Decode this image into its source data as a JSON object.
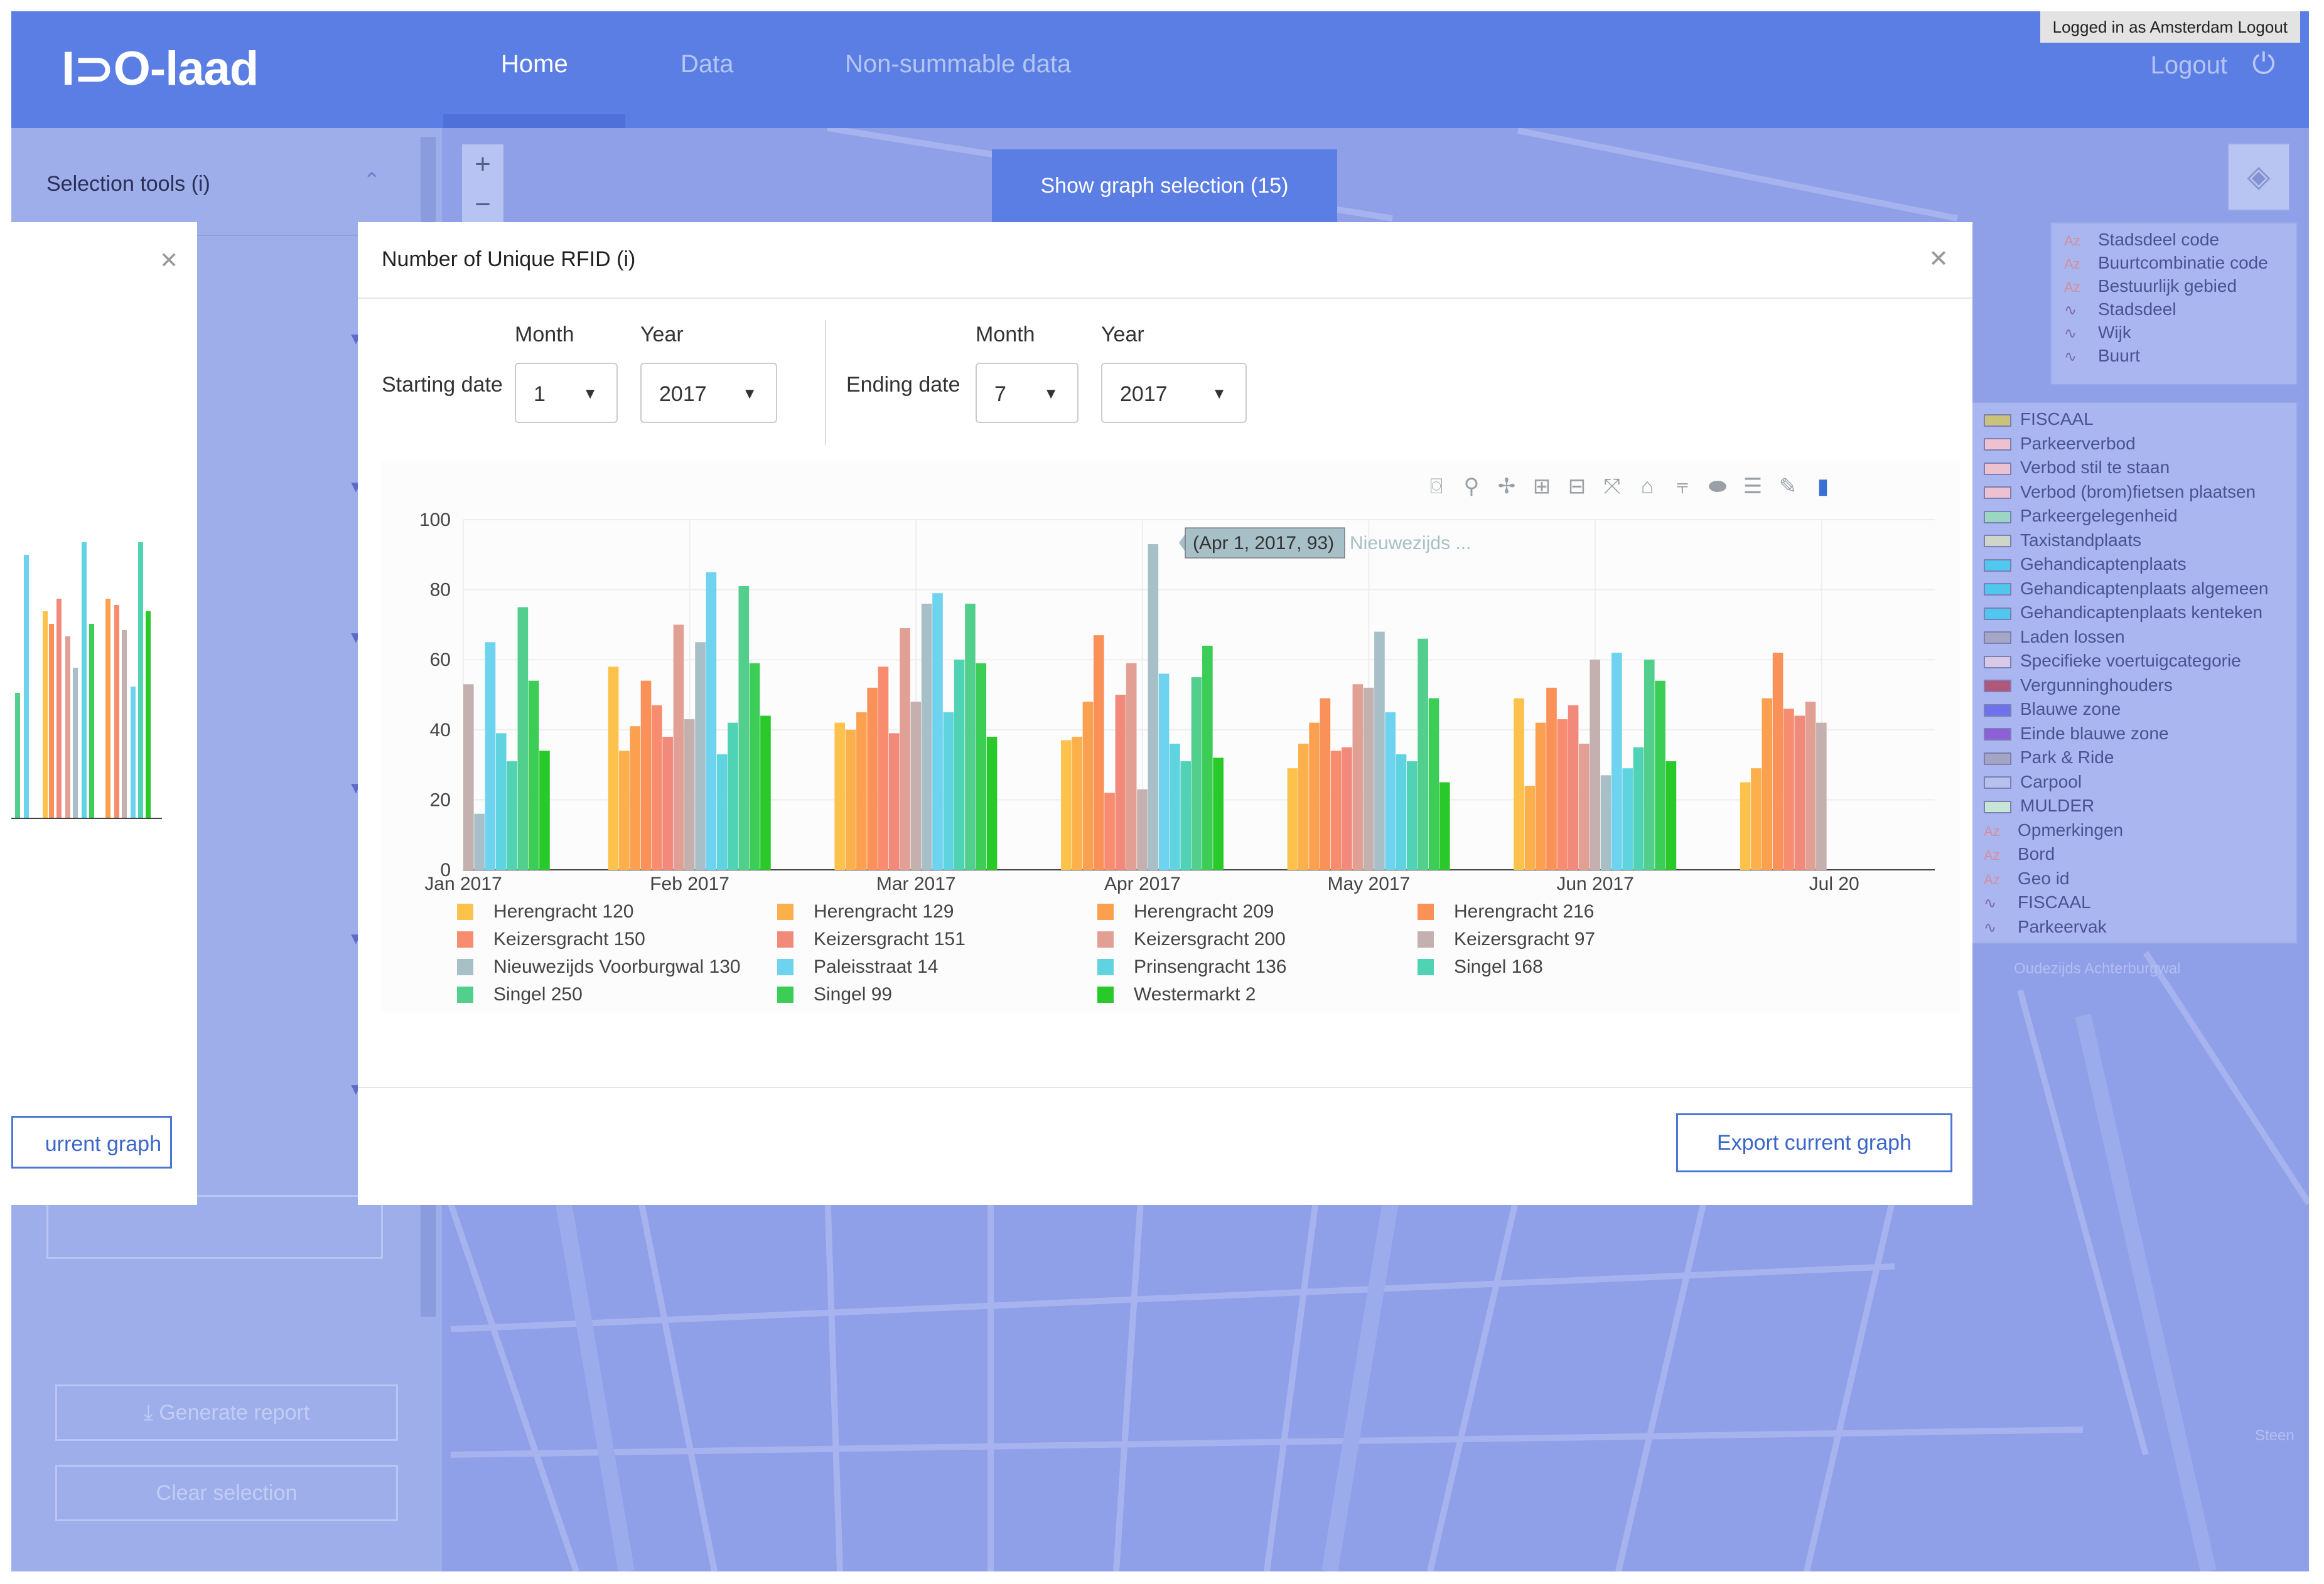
{
  "app": {
    "logo": "I⊃O-laad",
    "nav": [
      "Home",
      "Data",
      "Non-summable data"
    ],
    "logged_in": "Logged in as Amsterdam  Logout",
    "logout": "Logout",
    "power_icon": "power-icon"
  },
  "sidebar": {
    "title": "Selection tools (i)",
    "generate_report": "Generate report",
    "clear_selection": "Clear selection"
  },
  "map_labels": [
    "Oudezijds Achterburgwal",
    "Steen"
  ],
  "show_graph_selection": "Show graph selection (15)",
  "layers_legend": [
    {
      "kind": "az",
      "label": "Stadsdeel code"
    },
    {
      "kind": "az",
      "label": "Buurtcombinatie code"
    },
    {
      "kind": "az",
      "label": "Bestuurlijk gebied"
    },
    {
      "kind": "line",
      "label": "Stadsdeel"
    },
    {
      "kind": "line",
      "label": "Wijk"
    },
    {
      "kind": "line",
      "label": "Buurt"
    }
  ],
  "parking_legend": [
    {
      "kind": "swatch",
      "color": "#c9c27a",
      "label": "FISCAAL"
    },
    {
      "kind": "swatch",
      "color": "#eec1d1",
      "label": "Parkeerverbod"
    },
    {
      "kind": "swatch",
      "color": "#eec1d1",
      "label": "Verbod stil te staan"
    },
    {
      "kind": "swatch",
      "color": "#eec1d1",
      "label": "Verbod (brom)fietsen plaatsen"
    },
    {
      "kind": "swatch",
      "color": "#9ad6c1",
      "label": "Parkeergelegenheid"
    },
    {
      "kind": "swatch",
      "color": "#cfd6c8",
      "label": "Taxistandplaats"
    },
    {
      "kind": "swatch",
      "color": "#4fc7ee",
      "label": "Gehandicaptenplaats"
    },
    {
      "kind": "swatch",
      "color": "#4fc7ee",
      "label": "Gehandicaptenplaats algemeen"
    },
    {
      "kind": "swatch",
      "color": "#4fc7ee",
      "label": "Gehandicaptenplaats kenteken"
    },
    {
      "kind": "swatch",
      "color": "#a6a6c6",
      "label": "Laden lossen"
    },
    {
      "kind": "swatch",
      "color": "#d8c9e6",
      "label": "Specifieke voertuigcategorie"
    },
    {
      "kind": "swatch",
      "color": "#b0577a",
      "label": "Vergunninghouders"
    },
    {
      "kind": "swatch",
      "color": "#6d71ee",
      "label": "Blauwe zone"
    },
    {
      "kind": "swatch",
      "color": "#8f5fd8",
      "label": "Einde blauwe zone"
    },
    {
      "kind": "swatch",
      "color": "#a4a4c4",
      "label": "Park & Ride"
    },
    {
      "kind": "swatch",
      "color": "#b8c1ee",
      "label": "Carpool"
    },
    {
      "kind": "swatch",
      "color": "#c8e6d6",
      "label": "MULDER"
    },
    {
      "kind": "az",
      "label": "Opmerkingen"
    },
    {
      "kind": "az",
      "label": "Bord"
    },
    {
      "kind": "az",
      "label": "Geo id"
    },
    {
      "kind": "line",
      "label": "FISCAAL"
    },
    {
      "kind": "line",
      "label": "Parkeervak"
    }
  ],
  "modal": {
    "title": "Number of Unique RFID (i)",
    "start_label": "Starting date",
    "end_label": "Ending date",
    "month_label": "Month",
    "year_label": "Year",
    "start_month": "1",
    "start_year": "2017",
    "end_month": "7",
    "end_year": "2017",
    "export": "Export current graph",
    "back_export": "urrent graph",
    "tooltip": "(Apr 1, 2017, 93)",
    "tooltip_name": "Nieuwezijds ..."
  },
  "toolbar_icons": [
    "camera-icon",
    "zoom-icon",
    "pan-icon",
    "zoom-in-icon",
    "zoom-out-icon",
    "autoscale-icon",
    "reset-axes-icon",
    "spike-lines-icon",
    "hover-closest-icon",
    "hover-compare-icon",
    "edit-icon",
    "plotly-logo-icon"
  ],
  "chart_data": {
    "type": "bar",
    "ylim": [
      0,
      100
    ],
    "yticks": [
      "0",
      "20",
      "40",
      "60",
      "80",
      "100"
    ],
    "xticks": [
      "Jan 2017",
      "Feb 2017",
      "Mar 2017",
      "Apr 2017",
      "May 2017",
      "Jun 2017",
      "Jul 20"
    ],
    "categories": [
      "Jan 2017",
      "Feb 2017",
      "Mar 2017",
      "Apr 2017",
      "May 2017",
      "Jun 2017",
      "Jul 2017"
    ],
    "series": [
      {
        "name": "Herengracht 120",
        "color": "#fcc24c",
        "values": [
          null,
          58,
          42,
          37,
          29,
          49,
          25
        ]
      },
      {
        "name": "Herengracht 129",
        "color": "#fbb04c",
        "values": [
          null,
          34,
          40,
          38,
          36,
          24,
          29
        ]
      },
      {
        "name": "Herengracht 209",
        "color": "#fba04e",
        "values": [
          null,
          41,
          45,
          48,
          42,
          42,
          49
        ]
      },
      {
        "name": "Herengracht 216",
        "color": "#f99159",
        "values": [
          null,
          54,
          52,
          67,
          49,
          52,
          62
        ]
      },
      {
        "name": "Keizersgracht 150",
        "color": "#f78c6e",
        "values": [
          null,
          47,
          58,
          22,
          34,
          43,
          46
        ]
      },
      {
        "name": "Keizersgracht 151",
        "color": "#f28a7c",
        "values": [
          null,
          38,
          39,
          50,
          35,
          47,
          44
        ]
      },
      {
        "name": "Keizersgracht 200",
        "color": "#e29f93",
        "values": [
          null,
          70,
          69,
          59,
          53,
          36,
          48
        ]
      },
      {
        "name": "Keizersgracht 97",
        "color": "#c4b0ae",
        "values": [
          53,
          43,
          48,
          23,
          52,
          60,
          42
        ]
      },
      {
        "name": "Nieuwezijds Voorburgwal 130",
        "color": "#a7bfc6",
        "values": [
          16,
          65,
          76,
          93,
          68,
          27,
          null
        ]
      },
      {
        "name": "Paleisstraat 14",
        "color": "#6ed3ee",
        "values": [
          65,
          85,
          79,
          56,
          45,
          62,
          null
        ]
      },
      {
        "name": "Prinsengracht 136",
        "color": "#5fd4e0",
        "values": [
          39,
          33,
          45,
          36,
          33,
          29,
          null
        ]
      },
      {
        "name": "Singel 168",
        "color": "#50d3b4",
        "values": [
          31,
          42,
          60,
          31,
          31,
          35,
          null
        ]
      },
      {
        "name": "Singel 250",
        "color": "#52cf8c",
        "values": [
          75,
          81,
          76,
          55,
          66,
          60,
          null
        ]
      },
      {
        "name": "Singel 99",
        "color": "#3ccd57",
        "values": [
          54,
          59,
          59,
          64,
          49,
          54,
          null
        ]
      },
      {
        "name": "Westermarkt 2",
        "color": "#28c928",
        "values": [
          34,
          44,
          38,
          32,
          25,
          31,
          null
        ]
      }
    ]
  }
}
